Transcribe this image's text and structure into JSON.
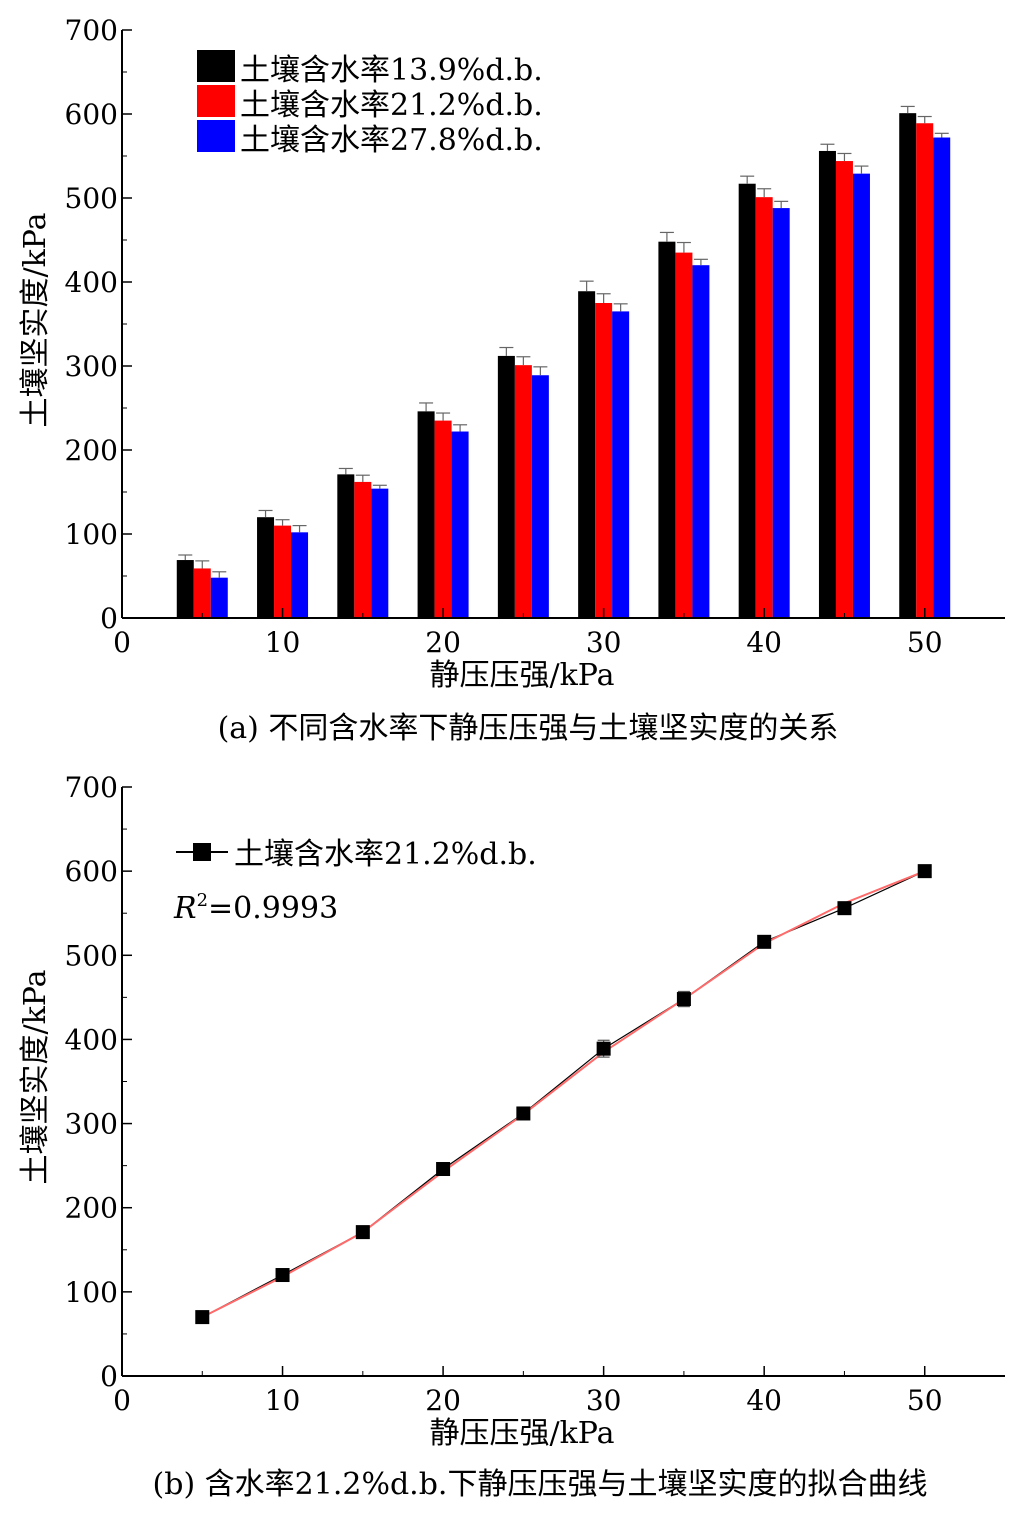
{
  "chart_data": [
    {
      "type": "bar",
      "caption": "(a) 不同含水率下静压压强与土壤坚实度的关系",
      "xlabel": "静压压强/kPa",
      "ylabel": "土壤坚实度/kPa",
      "x_ticks": [
        "0",
        "10",
        "20",
        "30",
        "40",
        "50"
      ],
      "y_ticks": [
        "0",
        "100",
        "200",
        "300",
        "400",
        "500",
        "600",
        "700"
      ],
      "xlim": [
        0,
        55
      ],
      "ylim": [
        0,
        700
      ],
      "categories": [
        5,
        10,
        15,
        20,
        25,
        30,
        35,
        40,
        45,
        50
      ],
      "legend_position": "top-left",
      "series": [
        {
          "name": "土壤含水率13.9%d.b.",
          "color": "#000000",
          "values": [
            69,
            120,
            171,
            246,
            312,
            389,
            448,
            517,
            556,
            601
          ],
          "errors": [
            6,
            8,
            7,
            10,
            10,
            12,
            11,
            9,
            8,
            8
          ]
        },
        {
          "name": "土壤含水率21.2%d.b.",
          "color": "#ff0000",
          "values": [
            59,
            110,
            162,
            235,
            301,
            375,
            435,
            501,
            544,
            589
          ],
          "errors": [
            9,
            7,
            8,
            9,
            10,
            11,
            12,
            10,
            9,
            8
          ]
        },
        {
          "name": "土壤含水率27.8%d.b.",
          "color": "#0000ff",
          "values": [
            48,
            102,
            154,
            222,
            289,
            365,
            420,
            488,
            529,
            572
          ],
          "errors": [
            7,
            8,
            4,
            8,
            10,
            9,
            7,
            8,
            9,
            5
          ]
        }
      ]
    },
    {
      "type": "line",
      "caption": "(b) 含水率21.2%d.b.下静压压强与土壤坚实度的拟合曲线",
      "xlabel": "静压压强/kPa",
      "ylabel": "土壤坚实度/kPa",
      "x_ticks": [
        "0",
        "10",
        "20",
        "30",
        "40",
        "50"
      ],
      "y_ticks": [
        "0",
        "100",
        "200",
        "300",
        "400",
        "500",
        "600",
        "700"
      ],
      "xlim": [
        0,
        55
      ],
      "ylim": [
        0,
        700
      ],
      "legend_position": "top-left",
      "series": [
        {
          "name": "土壤含水率21.2%d.b.",
          "color": "#000000",
          "marker": "square",
          "x": [
            5,
            10,
            15,
            20,
            25,
            30,
            35,
            40,
            45,
            50
          ],
          "y": [
            70,
            120,
            171,
            246,
            312,
            389,
            448,
            516,
            556,
            600
          ],
          "errors": [
            5,
            7,
            5,
            6,
            7,
            10,
            9,
            6,
            4,
            4
          ]
        }
      ],
      "fit": {
        "color": "#ff6a6a",
        "x": [
          5,
          10,
          15,
          20,
          25,
          30,
          35,
          40,
          45,
          50
        ],
        "y": [
          70,
          118,
          171,
          243,
          311,
          385,
          448,
          514,
          562,
          600
        ]
      },
      "annotation": {
        "r2_symbol": "R",
        "r2_exp": "2",
        "r2_value": "=0.9993"
      }
    }
  ]
}
